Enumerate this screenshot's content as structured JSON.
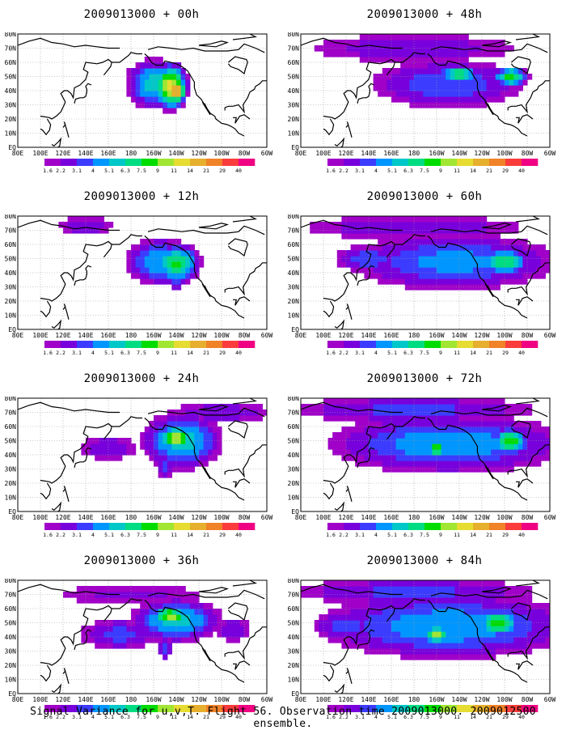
{
  "footer": "Signal Variance for u,v,T. Flight 56. Observation time 2009013000. 2009012500 ensemble.",
  "lon_ticks": [
    "80E",
    "100E",
    "120E",
    "140E",
    "160E",
    "180",
    "160W",
    "140W",
    "120W",
    "100W",
    "80W",
    "60W"
  ],
  "lat_ticks": [
    "EQ",
    "10N",
    "20N",
    "30N",
    "40N",
    "50N",
    "60N",
    "70N",
    "80N"
  ],
  "colorbar": {
    "labels": [
      "1.6",
      "2.2",
      "3.1",
      "4",
      "5.1",
      "6.3",
      "7.5",
      "9",
      "11",
      "14",
      "21",
      "29",
      "40"
    ],
    "colors": [
      "#a000c8",
      "#7800dc",
      "#3c3cff",
      "#0096ff",
      "#00c8c8",
      "#00dc82",
      "#00dc00",
      "#a0e632",
      "#e6dc32",
      "#e6af2d",
      "#f08228",
      "#fa3c3c",
      "#f00082"
    ]
  },
  "coast_color": "#000000",
  "chart_data": [
    {
      "type": "heatmap",
      "title": "2009013000 + 00h",
      "variable": "Signal Variance for u,v,T",
      "forecast_hour": 0,
      "blobs": [
        {
          "lon": -160,
          "lat": 45,
          "rx": 22,
          "ry": 16,
          "peak": 6
        },
        {
          "lon": -145,
          "lat": 43,
          "rx": 12,
          "ry": 13,
          "peak": 12
        },
        {
          "lon": -140,
          "lat": 40,
          "rx": 6,
          "ry": 6,
          "peak": 22
        }
      ],
      "xlim": [
        "80E",
        "60W"
      ],
      "ylim": [
        "EQ",
        "80N"
      ]
    },
    {
      "type": "heatmap",
      "title": "2009013000 + 12h",
      "variable": "Signal Variance for u,v,T",
      "forecast_hour": 12,
      "blobs": [
        {
          "lon": -155,
          "lat": 48,
          "rx": 28,
          "ry": 16,
          "peak": 5
        },
        {
          "lon": -140,
          "lat": 47,
          "rx": 18,
          "ry": 12,
          "peak": 8
        },
        {
          "lon": -140,
          "lat": 35,
          "rx": 6,
          "ry": 10,
          "peak": 4
        },
        {
          "lon": 140,
          "lat": 73,
          "rx": 30,
          "ry": 8,
          "peak": 3
        }
      ],
      "xlim": [
        "80E",
        "60W"
      ],
      "ylim": [
        "EQ",
        "80N"
      ]
    },
    {
      "type": "heatmap",
      "title": "2009013000 + 24h",
      "variable": "Signal Variance for u,v,T",
      "forecast_hour": 24,
      "blobs": [
        {
          "lon": -135,
          "lat": 50,
          "rx": 32,
          "ry": 18,
          "peak": 6
        },
        {
          "lon": -140,
          "lat": 52,
          "rx": 14,
          "ry": 8,
          "peak": 10
        },
        {
          "lon": -150,
          "lat": 32,
          "rx": 6,
          "ry": 10,
          "peak": 4
        },
        {
          "lon": 160,
          "lat": 45,
          "rx": 30,
          "ry": 10,
          "peak": 3
        },
        {
          "lon": -100,
          "lat": 70,
          "rx": 60,
          "ry": 8,
          "peak": 3
        }
      ],
      "xlim": [
        "80E",
        "60W"
      ],
      "ylim": [
        "EQ",
        "80N"
      ]
    },
    {
      "type": "heatmap",
      "title": "2009013000 + 36h",
      "variable": "Signal Variance for u,v,T",
      "forecast_hour": 36,
      "blobs": [
        {
          "lon": -140,
          "lat": 52,
          "rx": 36,
          "ry": 14,
          "peak": 6
        },
        {
          "lon": -145,
          "lat": 55,
          "rx": 14,
          "ry": 6,
          "peak": 10
        },
        {
          "lon": 170,
          "lat": 42,
          "rx": 40,
          "ry": 12,
          "peak": 3.5
        },
        {
          "lon": -150,
          "lat": 32,
          "rx": 6,
          "ry": 8,
          "peak": 4
        },
        {
          "lon": -90,
          "lat": 45,
          "rx": 20,
          "ry": 10,
          "peak": 3
        },
        {
          "lon": 180,
          "lat": 70,
          "rx": 90,
          "ry": 10,
          "peak": 2.5
        }
      ],
      "xlim": [
        "80E",
        "60W"
      ],
      "ylim": [
        "EQ",
        "80N"
      ]
    },
    {
      "type": "heatmap",
      "title": "2009013000 + 48h",
      "variable": "Signal Variance for u,v,T",
      "forecast_hour": 48,
      "blobs": [
        {
          "lon": -150,
          "lat": 45,
          "rx": 70,
          "ry": 18,
          "peak": 4
        },
        {
          "lon": -140,
          "lat": 52,
          "rx": 14,
          "ry": 6,
          "peak": 8
        },
        {
          "lon": -95,
          "lat": 50,
          "rx": 14,
          "ry": 6,
          "peak": 8
        },
        {
          "lon": 180,
          "lat": 70,
          "rx": 110,
          "ry": 12,
          "peak": 3
        }
      ],
      "xlim": [
        "80E",
        "60W"
      ],
      "ylim": [
        "EQ",
        "80N"
      ]
    },
    {
      "type": "heatmap",
      "title": "2009013000 + 60h",
      "variable": "Signal Variance for u,v,T",
      "forecast_hour": 60,
      "blobs": [
        {
          "lon": -145,
          "lat": 48,
          "rx": 90,
          "ry": 20,
          "peak": 4.5
        },
        {
          "lon": -100,
          "lat": 48,
          "rx": 18,
          "ry": 8,
          "peak": 8
        },
        {
          "lon": 140,
          "lat": 50,
          "rx": 30,
          "ry": 10,
          "peak": 4
        },
        {
          "lon": 180,
          "lat": 72,
          "rx": 120,
          "ry": 10,
          "peak": 3
        }
      ],
      "xlim": [
        "80E",
        "60W"
      ],
      "ylim": [
        "EQ",
        "80N"
      ]
    },
    {
      "type": "heatmap",
      "title": "2009013000 + 72h",
      "variable": "Signal Variance for u,v,T",
      "forecast_hour": 72,
      "blobs": [
        {
          "lon": -150,
          "lat": 48,
          "rx": 100,
          "ry": 20,
          "peak": 5
        },
        {
          "lon": -160,
          "lat": 45,
          "rx": 8,
          "ry": 6,
          "peak": 9
        },
        {
          "lon": -95,
          "lat": 50,
          "rx": 14,
          "ry": 8,
          "peak": 9
        },
        {
          "lon": 180,
          "lat": 72,
          "rx": 120,
          "ry": 10,
          "peak": 3.5
        }
      ],
      "xlim": [
        "80E",
        "60W"
      ],
      "ylim": [
        "EQ",
        "80N"
      ]
    },
    {
      "type": "heatmap",
      "title": "2009013000 + 84h",
      "variable": "Signal Variance for u,v,T",
      "forecast_hour": 84,
      "blobs": [
        {
          "lon": -150,
          "lat": 48,
          "rx": 110,
          "ry": 22,
          "peak": 5
        },
        {
          "lon": -160,
          "lat": 42,
          "rx": 10,
          "ry": 6,
          "peak": 10
        },
        {
          "lon": -105,
          "lat": 50,
          "rx": 16,
          "ry": 8,
          "peak": 9
        },
        {
          "lon": 120,
          "lat": 48,
          "rx": 30,
          "ry": 10,
          "peak": 4
        },
        {
          "lon": 180,
          "lat": 72,
          "rx": 120,
          "ry": 10,
          "peak": 3.5
        }
      ],
      "xlim": [
        "80E",
        "60W"
      ],
      "ylim": [
        "EQ",
        "80N"
      ]
    }
  ]
}
